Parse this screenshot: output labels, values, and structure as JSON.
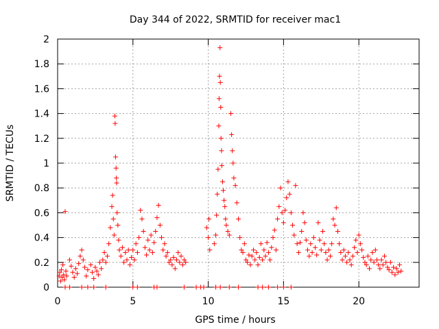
{
  "chart_data": {
    "type": "scatter",
    "title": "Day 344 of 2022, SRMTID for receiver mac1",
    "xlabel": "GPS time / hours",
    "ylabel": "SRMTID / TECUs",
    "xlim": [
      0,
      24
    ],
    "ylim": [
      0,
      2
    ],
    "xticks": [
      "0",
      "5",
      "10",
      "15",
      "20"
    ],
    "yticks": [
      "0",
      "0.2",
      "0.4",
      "0.6",
      "0.8",
      "1",
      "1.2",
      "1.4",
      "1.6",
      "1.8",
      "2"
    ],
    "grid": true,
    "marker": "plus",
    "color": "#ff0000",
    "series": [
      {
        "name": "SRMTID",
        "points": [
          [
            0.1,
            0.09
          ],
          [
            0.15,
            0.12
          ],
          [
            0.2,
            0.05
          ],
          [
            0.25,
            0.14
          ],
          [
            0.3,
            0.08
          ],
          [
            0.35,
            0.18
          ],
          [
            0.4,
            0.1
          ],
          [
            0.45,
            0.06
          ],
          [
            0.5,
            0.61
          ],
          [
            0.55,
            0.13
          ],
          [
            0.6,
            0.09
          ],
          [
            0.8,
            0.22
          ],
          [
            0.9,
            0.17
          ],
          [
            1.0,
            0.12
          ],
          [
            1.1,
            0.08
          ],
          [
            1.2,
            0.15
          ],
          [
            1.3,
            0.11
          ],
          [
            1.4,
            0.19
          ],
          [
            1.5,
            0.25
          ],
          [
            1.6,
            0.3
          ],
          [
            1.7,
            0.22
          ],
          [
            1.8,
            0.16
          ],
          [
            1.9,
            0.09
          ],
          [
            2.0,
            0.14
          ],
          [
            2.2,
            0.18
          ],
          [
            2.3,
            0.12
          ],
          [
            2.4,
            0.07
          ],
          [
            2.5,
            0.16
          ],
          [
            2.6,
            0.13
          ],
          [
            2.7,
            0.1
          ],
          [
            2.8,
            0.2
          ],
          [
            2.9,
            0.15
          ],
          [
            3.0,
            0.22
          ],
          [
            3.1,
            0.28
          ],
          [
            3.2,
            0.2
          ],
          [
            3.3,
            0.25
          ],
          [
            3.4,
            0.35
          ],
          [
            3.5,
            0.48
          ],
          [
            3.6,
            0.65
          ],
          [
            3.65,
            0.74
          ],
          [
            3.7,
            0.55
          ],
          [
            3.75,
            0.42
          ],
          [
            3.8,
            1.38
          ],
          [
            3.82,
            1.32
          ],
          [
            3.85,
            1.05
          ],
          [
            3.88,
            0.96
          ],
          [
            3.9,
            0.88
          ],
          [
            3.92,
            0.84
          ],
          [
            3.95,
            0.6
          ],
          [
            4.0,
            0.5
          ],
          [
            4.05,
            0.38
          ],
          [
            4.1,
            0.3
          ],
          [
            4.2,
            0.25
          ],
          [
            4.3,
            0.32
          ],
          [
            4.4,
            0.2
          ],
          [
            4.5,
            0.28
          ],
          [
            4.6,
            0.22
          ],
          [
            4.7,
            0.3
          ],
          [
            4.8,
            0.18
          ],
          [
            4.9,
            0.24
          ],
          [
            5.0,
            0.3
          ],
          [
            5.1,
            0.22
          ],
          [
            5.2,
            0.35
          ],
          [
            5.3,
            0.28
          ],
          [
            5.4,
            0.4
          ],
          [
            5.5,
            0.62
          ],
          [
            5.6,
            0.55
          ],
          [
            5.7,
            0.45
          ],
          [
            5.8,
            0.32
          ],
          [
            5.9,
            0.26
          ],
          [
            6.0,
            0.38
          ],
          [
            6.1,
            0.3
          ],
          [
            6.2,
            0.42
          ],
          [
            6.3,
            0.28
          ],
          [
            6.4,
            0.36
          ],
          [
            6.5,
            0.45
          ],
          [
            6.6,
            0.56
          ],
          [
            6.7,
            0.66
          ],
          [
            6.8,
            0.5
          ],
          [
            6.9,
            0.4
          ],
          [
            7.0,
            0.3
          ],
          [
            7.1,
            0.35
          ],
          [
            7.2,
            0.25
          ],
          [
            7.3,
            0.28
          ],
          [
            7.4,
            0.2
          ],
          [
            7.5,
            0.22
          ],
          [
            7.6,
            0.18
          ],
          [
            7.7,
            0.24
          ],
          [
            7.8,
            0.15
          ],
          [
            7.9,
            0.22
          ],
          [
            8.0,
            0.28
          ],
          [
            8.1,
            0.2
          ],
          [
            8.2,
            0.25
          ],
          [
            8.3,
            0.18
          ],
          [
            8.4,
            0.22
          ],
          [
            8.5,
            0.2
          ],
          [
            9.9,
            0.48
          ],
          [
            10.0,
            0.4
          ],
          [
            10.05,
            0.55
          ],
          [
            10.1,
            0.3
          ],
          [
            10.4,
            0.35
          ],
          [
            10.5,
            0.42
          ],
          [
            10.55,
            0.58
          ],
          [
            10.6,
            0.75
          ],
          [
            10.65,
            0.95
          ],
          [
            10.7,
            1.3
          ],
          [
            10.72,
            1.52
          ],
          [
            10.75,
            1.7
          ],
          [
            10.78,
            1.93
          ],
          [
            10.8,
            1.65
          ],
          [
            10.83,
            1.45
          ],
          [
            10.85,
            1.2
          ],
          [
            10.88,
            1.1
          ],
          [
            10.9,
            0.98
          ],
          [
            10.95,
            0.85
          ],
          [
            11.0,
            0.78
          ],
          [
            11.05,
            0.7
          ],
          [
            11.1,
            0.65
          ],
          [
            11.15,
            0.55
          ],
          [
            11.2,
            0.5
          ],
          [
            11.3,
            0.45
          ],
          [
            11.4,
            0.42
          ],
          [
            11.5,
            1.4
          ],
          [
            11.55,
            1.23
          ],
          [
            11.6,
            1.1
          ],
          [
            11.65,
            1.0
          ],
          [
            11.7,
            0.88
          ],
          [
            11.8,
            0.82
          ],
          [
            11.9,
            0.68
          ],
          [
            12.0,
            0.55
          ],
          [
            12.1,
            0.4
          ],
          [
            12.2,
            0.3
          ],
          [
            12.3,
            0.28
          ],
          [
            12.4,
            0.35
          ],
          [
            12.5,
            0.22
          ],
          [
            12.6,
            0.2
          ],
          [
            12.7,
            0.26
          ],
          [
            12.8,
            0.18
          ],
          [
            12.9,
            0.25
          ],
          [
            13.0,
            0.3
          ],
          [
            13.1,
            0.22
          ],
          [
            13.2,
            0.28
          ],
          [
            13.3,
            0.18
          ],
          [
            13.4,
            0.24
          ],
          [
            13.5,
            0.35
          ],
          [
            13.6,
            0.22
          ],
          [
            13.7,
            0.3
          ],
          [
            13.8,
            0.25
          ],
          [
            13.9,
            0.36
          ],
          [
            14.0,
            0.28
          ],
          [
            14.1,
            0.22
          ],
          [
            14.2,
            0.32
          ],
          [
            14.3,
            0.4
          ],
          [
            14.4,
            0.46
          ],
          [
            14.5,
            0.3
          ],
          [
            14.6,
            0.55
          ],
          [
            14.7,
            0.65
          ],
          [
            14.8,
            0.8
          ],
          [
            14.9,
            0.6
          ],
          [
            15.0,
            0.52
          ],
          [
            15.1,
            0.62
          ],
          [
            15.2,
            0.72
          ],
          [
            15.3,
            0.85
          ],
          [
            15.4,
            0.75
          ],
          [
            15.5,
            0.6
          ],
          [
            15.6,
            0.5
          ],
          [
            15.7,
            0.42
          ],
          [
            15.8,
            0.82
          ],
          [
            15.9,
            0.35
          ],
          [
            16.0,
            0.28
          ],
          [
            16.1,
            0.36
          ],
          [
            16.2,
            0.45
          ],
          [
            16.3,
            0.6
          ],
          [
            16.4,
            0.52
          ],
          [
            16.5,
            0.38
          ],
          [
            16.6,
            0.3
          ],
          [
            16.7,
            0.25
          ],
          [
            16.8,
            0.35
          ],
          [
            16.9,
            0.28
          ],
          [
            17.0,
            0.4
          ],
          [
            17.1,
            0.32
          ],
          [
            17.2,
            0.26
          ],
          [
            17.3,
            0.52
          ],
          [
            17.4,
            0.38
          ],
          [
            17.5,
            0.3
          ],
          [
            17.6,
            0.45
          ],
          [
            17.7,
            0.35
          ],
          [
            17.8,
            0.28
          ],
          [
            17.9,
            0.22
          ],
          [
            18.0,
            0.3
          ],
          [
            18.1,
            0.25
          ],
          [
            18.2,
            0.35
          ],
          [
            18.3,
            0.55
          ],
          [
            18.4,
            0.5
          ],
          [
            18.5,
            0.64
          ],
          [
            18.6,
            0.45
          ],
          [
            18.7,
            0.35
          ],
          [
            18.8,
            0.28
          ],
          [
            18.9,
            0.22
          ],
          [
            19.0,
            0.3
          ],
          [
            19.1,
            0.25
          ],
          [
            19.2,
            0.2
          ],
          [
            19.3,
            0.28
          ],
          [
            19.4,
            0.22
          ],
          [
            19.5,
            0.18
          ],
          [
            19.6,
            0.25
          ],
          [
            19.7,
            0.32
          ],
          [
            19.8,
            0.38
          ],
          [
            19.9,
            0.28
          ],
          [
            20.0,
            0.42
          ],
          [
            20.1,
            0.35
          ],
          [
            20.2,
            0.3
          ],
          [
            20.3,
            0.24
          ],
          [
            20.4,
            0.2
          ],
          [
            20.5,
            0.18
          ],
          [
            20.6,
            0.25
          ],
          [
            20.7,
            0.15
          ],
          [
            20.8,
            0.22
          ],
          [
            20.9,
            0.28
          ],
          [
            21.0,
            0.2
          ],
          [
            21.1,
            0.3
          ],
          [
            21.2,
            0.22
          ],
          [
            21.3,
            0.18
          ],
          [
            21.4,
            0.15
          ],
          [
            21.5,
            0.22
          ],
          [
            21.6,
            0.18
          ],
          [
            21.7,
            0.25
          ],
          [
            21.8,
            0.2
          ],
          [
            21.9,
            0.16
          ],
          [
            22.0,
            0.14
          ],
          [
            22.1,
            0.2
          ],
          [
            22.2,
            0.12
          ],
          [
            22.3,
            0.16
          ],
          [
            22.4,
            0.1
          ],
          [
            22.5,
            0.15
          ],
          [
            22.6,
            0.12
          ],
          [
            22.7,
            0.18
          ],
          [
            22.8,
            0.13
          ],
          [
            0.5,
            0.0
          ],
          [
            0.8,
            0.0
          ],
          [
            1.6,
            0.0
          ],
          [
            2.0,
            0.0
          ],
          [
            2.4,
            0.0
          ],
          [
            3.2,
            0.0
          ],
          [
            5.0,
            0.0
          ],
          [
            5.3,
            0.0
          ],
          [
            6.4,
            0.0
          ],
          [
            6.6,
            0.0
          ],
          [
            8.4,
            0.0
          ],
          [
            9.2,
            0.0
          ],
          [
            9.5,
            0.0
          ],
          [
            9.7,
            0.0
          ],
          [
            10.5,
            0.0
          ],
          [
            10.8,
            0.0
          ],
          [
            11.4,
            0.0
          ],
          [
            12.0,
            0.0
          ],
          [
            13.3,
            0.0
          ],
          [
            13.6,
            0.0
          ],
          [
            14.0,
            0.0
          ],
          [
            14.6,
            0.0
          ],
          [
            15.0,
            0.0
          ],
          [
            15.5,
            0.0
          ]
        ]
      }
    ]
  }
}
